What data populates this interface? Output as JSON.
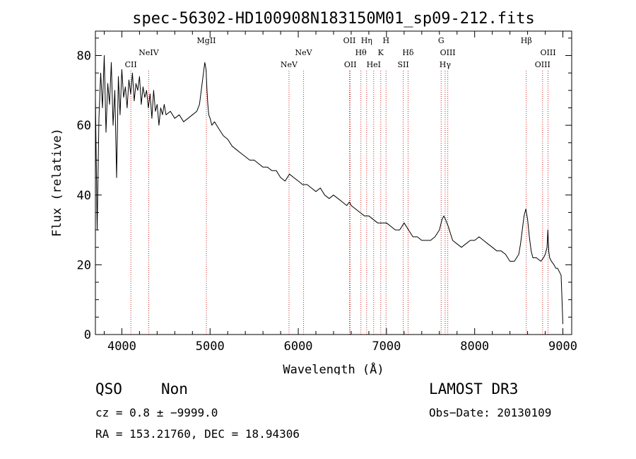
{
  "chart_data": {
    "type": "line",
    "title": "spec-56302-HD100908N183150M01_sp09-212.fits",
    "xlabel": "Wavelength (Å)",
    "ylabel": "Flux (relative)",
    "xlim": [
      3700,
      9100
    ],
    "ylim": [
      0,
      87
    ],
    "xticks": [
      4000,
      5000,
      6000,
      7000,
      8000,
      9000
    ],
    "yticks": [
      0,
      20,
      40,
      60,
      80
    ],
    "series": [
      {
        "name": "spectrum",
        "x": [
          3700,
          3720,
          3740,
          3760,
          3780,
          3800,
          3820,
          3840,
          3860,
          3880,
          3900,
          3920,
          3940,
          3960,
          3980,
          4000,
          4020,
          4040,
          4060,
          4080,
          4100,
          4120,
          4140,
          4160,
          4180,
          4200,
          4220,
          4240,
          4260,
          4280,
          4300,
          4320,
          4340,
          4360,
          4380,
          4400,
          4420,
          4440,
          4460,
          4480,
          4500,
          4550,
          4600,
          4650,
          4700,
          4750,
          4800,
          4850,
          4880,
          4900,
          4920,
          4940,
          4955,
          4965,
          4975,
          4985,
          5000,
          5020,
          5050,
          5100,
          5150,
          5200,
          5250,
          5300,
          5350,
          5400,
          5450,
          5500,
          5550,
          5600,
          5650,
          5700,
          5750,
          5800,
          5850,
          5900,
          5950,
          6000,
          6050,
          6100,
          6150,
          6200,
          6250,
          6300,
          6350,
          6400,
          6450,
          6500,
          6550,
          6580,
          6600,
          6650,
          6700,
          6750,
          6800,
          6850,
          6900,
          6950,
          7000,
          7050,
          7100,
          7150,
          7200,
          7250,
          7300,
          7350,
          7400,
          7450,
          7500,
          7550,
          7600,
          7630,
          7650,
          7670,
          7700,
          7750,
          7800,
          7850,
          7900,
          7950,
          8000,
          8050,
          8100,
          8150,
          8200,
          8250,
          8300,
          8350,
          8400,
          8450,
          8500,
          8520,
          8540,
          8560,
          8580,
          8600,
          8620,
          8640,
          8660,
          8700,
          8750,
          8780,
          8800,
          8820,
          8830,
          8840,
          8850,
          8870,
          8900,
          8920,
          8940,
          8960,
          8980,
          8990,
          9000
        ],
        "y": [
          68,
          30,
          62,
          75,
          65,
          80,
          58,
          72,
          66,
          78,
          60,
          70,
          45,
          74,
          63,
          76,
          68,
          71,
          65,
          73,
          69,
          75,
          67,
          72,
          70,
          74,
          66,
          71,
          68,
          70,
          65,
          69,
          62,
          70,
          64,
          66,
          60,
          65,
          63,
          66,
          63,
          64,
          62,
          63,
          61,
          62,
          63,
          64,
          66,
          70,
          74,
          78,
          76,
          70,
          66,
          63,
          62,
          60,
          61,
          59,
          57,
          56,
          54,
          53,
          52,
          51,
          50,
          50,
          49,
          48,
          48,
          47,
          47,
          45,
          44,
          46,
          45,
          44,
          43,
          43,
          42,
          41,
          42,
          40,
          39,
          40,
          39,
          38,
          37,
          38,
          37,
          36,
          35,
          34,
          34,
          33,
          32,
          32,
          32,
          31,
          30,
          30,
          32,
          30,
          28,
          28,
          27,
          27,
          27,
          28,
          30,
          33,
          34,
          33,
          31,
          27,
          26,
          25,
          26,
          27,
          27,
          28,
          27,
          26,
          25,
          24,
          24,
          23,
          21,
          21,
          23,
          26,
          30,
          34,
          36,
          33,
          28,
          24,
          22,
          22,
          21,
          22,
          23,
          25,
          30,
          24,
          22,
          21,
          20,
          19,
          19,
          18,
          17,
          10,
          3
        ]
      }
    ],
    "spectral_lines": [
      {
        "label": "CII",
        "wavelength": 4102,
        "row": "low"
      },
      {
        "label": "NeIV",
        "wavelength": 4305,
        "row": "high"
      },
      {
        "label": "MgII",
        "wavelength": 4958,
        "row": "top"
      },
      {
        "label": "NeV",
        "wavelength": 5895,
        "row": "low"
      },
      {
        "label": "NeV",
        "wavelength": 6060,
        "row": "high"
      },
      {
        "label": "OII",
        "wavelength": 6580,
        "row": "top"
      },
      {
        "label": "OII",
        "wavelength": 6590,
        "row": "low"
      },
      {
        "label": "Hθ",
        "wavelength": 6710,
        "row": "high"
      },
      {
        "label": "Hη",
        "wavelength": 6775,
        "row": "top"
      },
      {
        "label": "HeI",
        "wavelength": 6855,
        "row": "low"
      },
      {
        "label": "K",
        "wavelength": 6935,
        "row": "high"
      },
      {
        "label": "H",
        "wavelength": 6995,
        "row": "top"
      },
      {
        "label": "SII",
        "wavelength": 7190,
        "row": "low"
      },
      {
        "label": "Hδ",
        "wavelength": 7245,
        "row": "high"
      },
      {
        "label": "G",
        "wavelength": 7620,
        "row": "top"
      },
      {
        "label": "Hγ",
        "wavelength": 7665,
        "row": "low"
      },
      {
        "label": "OIII",
        "wavelength": 7695,
        "row": "high"
      },
      {
        "label": "Hβ",
        "wavelength": 8585,
        "row": "top"
      },
      {
        "label": "OIII",
        "wavelength": 8770,
        "row": "low"
      },
      {
        "label": "OIII",
        "wavelength": 8832,
        "row": "high"
      }
    ]
  },
  "info": {
    "class": "QSO",
    "subclass": "Non",
    "release": "LAMOST DR3",
    "redshift": "cz = 0.8 ± −9999.0",
    "obs_date": "Obs−Date: 20130109",
    "coords": "RA = 153.21760, DEC =  18.94306"
  },
  "colors": {
    "spectrum": "#000000",
    "line_marker": "#cc2222",
    "axis": "#000000"
  }
}
